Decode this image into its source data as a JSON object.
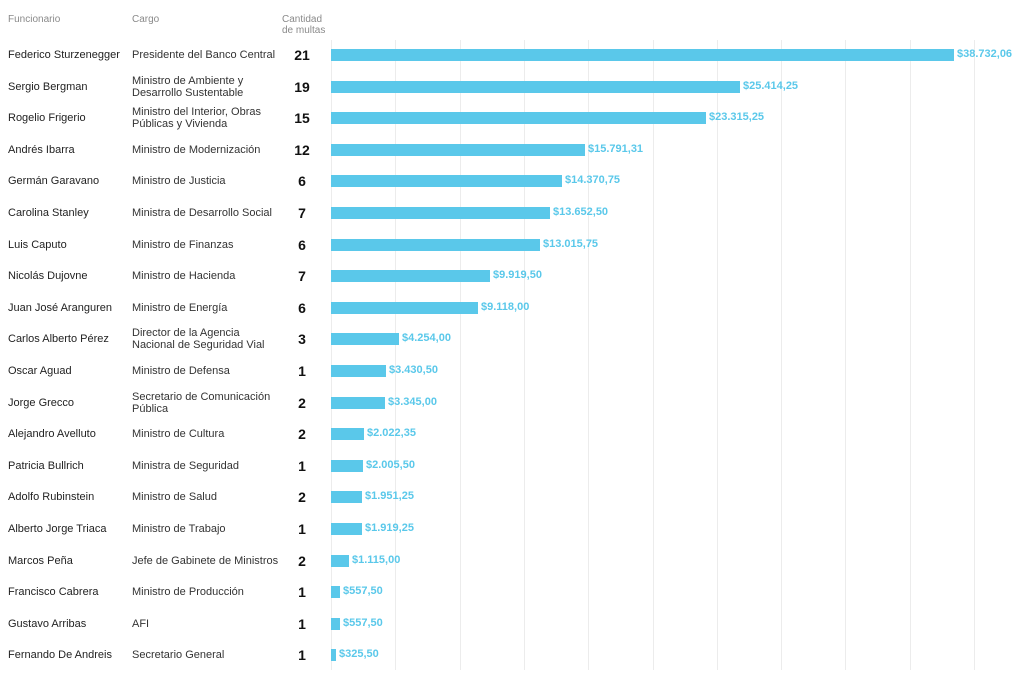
{
  "header": {
    "col_funcionario": "Funcionario",
    "col_cargo": "Cargo",
    "col_cantidad_line1": "Cantidad",
    "col_cantidad_line2": "de multas"
  },
  "colors": {
    "bar": "#5ac8ea",
    "label": "#5ac8ea",
    "grid": "#ececec"
  },
  "chart_data": {
    "type": "bar",
    "orientation": "horizontal",
    "grid": true,
    "xlim": [
      0,
      40000
    ],
    "rows": [
      {
        "funcionario": "Federico Sturzenegger",
        "cargo": "Presidente del Banco Central",
        "multas": "21",
        "monto": 38732.06,
        "monto_label": "$38.732,06"
      },
      {
        "funcionario": "Sergio Bergman",
        "cargo": "Ministro de Ambiente y Desarrollo Sustentable",
        "multas": "19",
        "monto": 25414.25,
        "monto_label": "$25.414,25"
      },
      {
        "funcionario": "Rogelio Frigerio",
        "cargo": "Ministro del Interior, Obras Públicas y Vivienda",
        "multas": "15",
        "monto": 23315.25,
        "monto_label": "$23.315,25"
      },
      {
        "funcionario": "Andrés Ibarra",
        "cargo": "Ministro de Modernización",
        "multas": "12",
        "monto": 15791.31,
        "monto_label": "$15.791,31"
      },
      {
        "funcionario": "Germán Garavano",
        "cargo": "Ministro de Justicia",
        "multas": "6",
        "monto": 14370.75,
        "monto_label": "$14.370,75"
      },
      {
        "funcionario": "Carolina Stanley",
        "cargo": "Ministra de Desarrollo Social",
        "multas": "7",
        "monto": 13652.5,
        "monto_label": "$13.652,50"
      },
      {
        "funcionario": "Luis Caputo",
        "cargo": "Ministro de Finanzas",
        "multas": "6",
        "monto": 13015.75,
        "monto_label": "$13.015,75"
      },
      {
        "funcionario": "Nicolás Dujovne",
        "cargo": "Ministro de Hacienda",
        "multas": "7",
        "monto": 9919.5,
        "monto_label": "$9.919,50"
      },
      {
        "funcionario": "Juan José Aranguren",
        "cargo": "Ministro de Energía",
        "multas": "6",
        "monto": 9118.0,
        "monto_label": "$9.118,00"
      },
      {
        "funcionario": "Carlos Alberto Pérez",
        "cargo": "Director de la Agencia Nacional de Seguridad Vial",
        "multas": "3",
        "monto": 4254.0,
        "monto_label": "$4.254,00"
      },
      {
        "funcionario": "Oscar Aguad",
        "cargo": "Ministro de Defensa",
        "multas": "1",
        "monto": 3430.5,
        "monto_label": "$3.430,50"
      },
      {
        "funcionario": "Jorge Grecco",
        "cargo": "Secretario de Comunicación Pública",
        "multas": "2",
        "monto": 3345.0,
        "monto_label": "$3.345,00"
      },
      {
        "funcionario": "Alejandro Avelluto",
        "cargo": "Ministro de Cultura",
        "multas": "2",
        "monto": 2022.35,
        "monto_label": "$2.022,35"
      },
      {
        "funcionario": "Patricia Bullrich",
        "cargo": "Ministra de Seguridad",
        "multas": "1",
        "monto": 2005.5,
        "monto_label": "$2.005,50"
      },
      {
        "funcionario": "Adolfo Rubinstein",
        "cargo": "Ministro de Salud",
        "multas": "2",
        "monto": 1951.25,
        "monto_label": "$1.951,25"
      },
      {
        "funcionario": "Alberto Jorge Triaca",
        "cargo": "Ministro de Trabajo",
        "multas": "1",
        "monto": 1919.25,
        "monto_label": "$1.919,25"
      },
      {
        "funcionario": "Marcos Peña",
        "cargo": "Jefe de Gabinete de Ministros",
        "multas": "2",
        "monto": 1115.0,
        "monto_label": "$1.115,00"
      },
      {
        "funcionario": "Francisco Cabrera",
        "cargo": "Ministro de Producción",
        "multas": "1",
        "monto": 557.5,
        "monto_label": "$557,50"
      },
      {
        "funcionario": "Gustavo Arribas",
        "cargo": "AFI",
        "multas": "1",
        "monto": 557.5,
        "monto_label": "$557,50"
      },
      {
        "funcionario": "Fernando De Andreis",
        "cargo": "Secretario General",
        "multas": "1",
        "monto": 325.5,
        "monto_label": "$325,50"
      }
    ]
  }
}
